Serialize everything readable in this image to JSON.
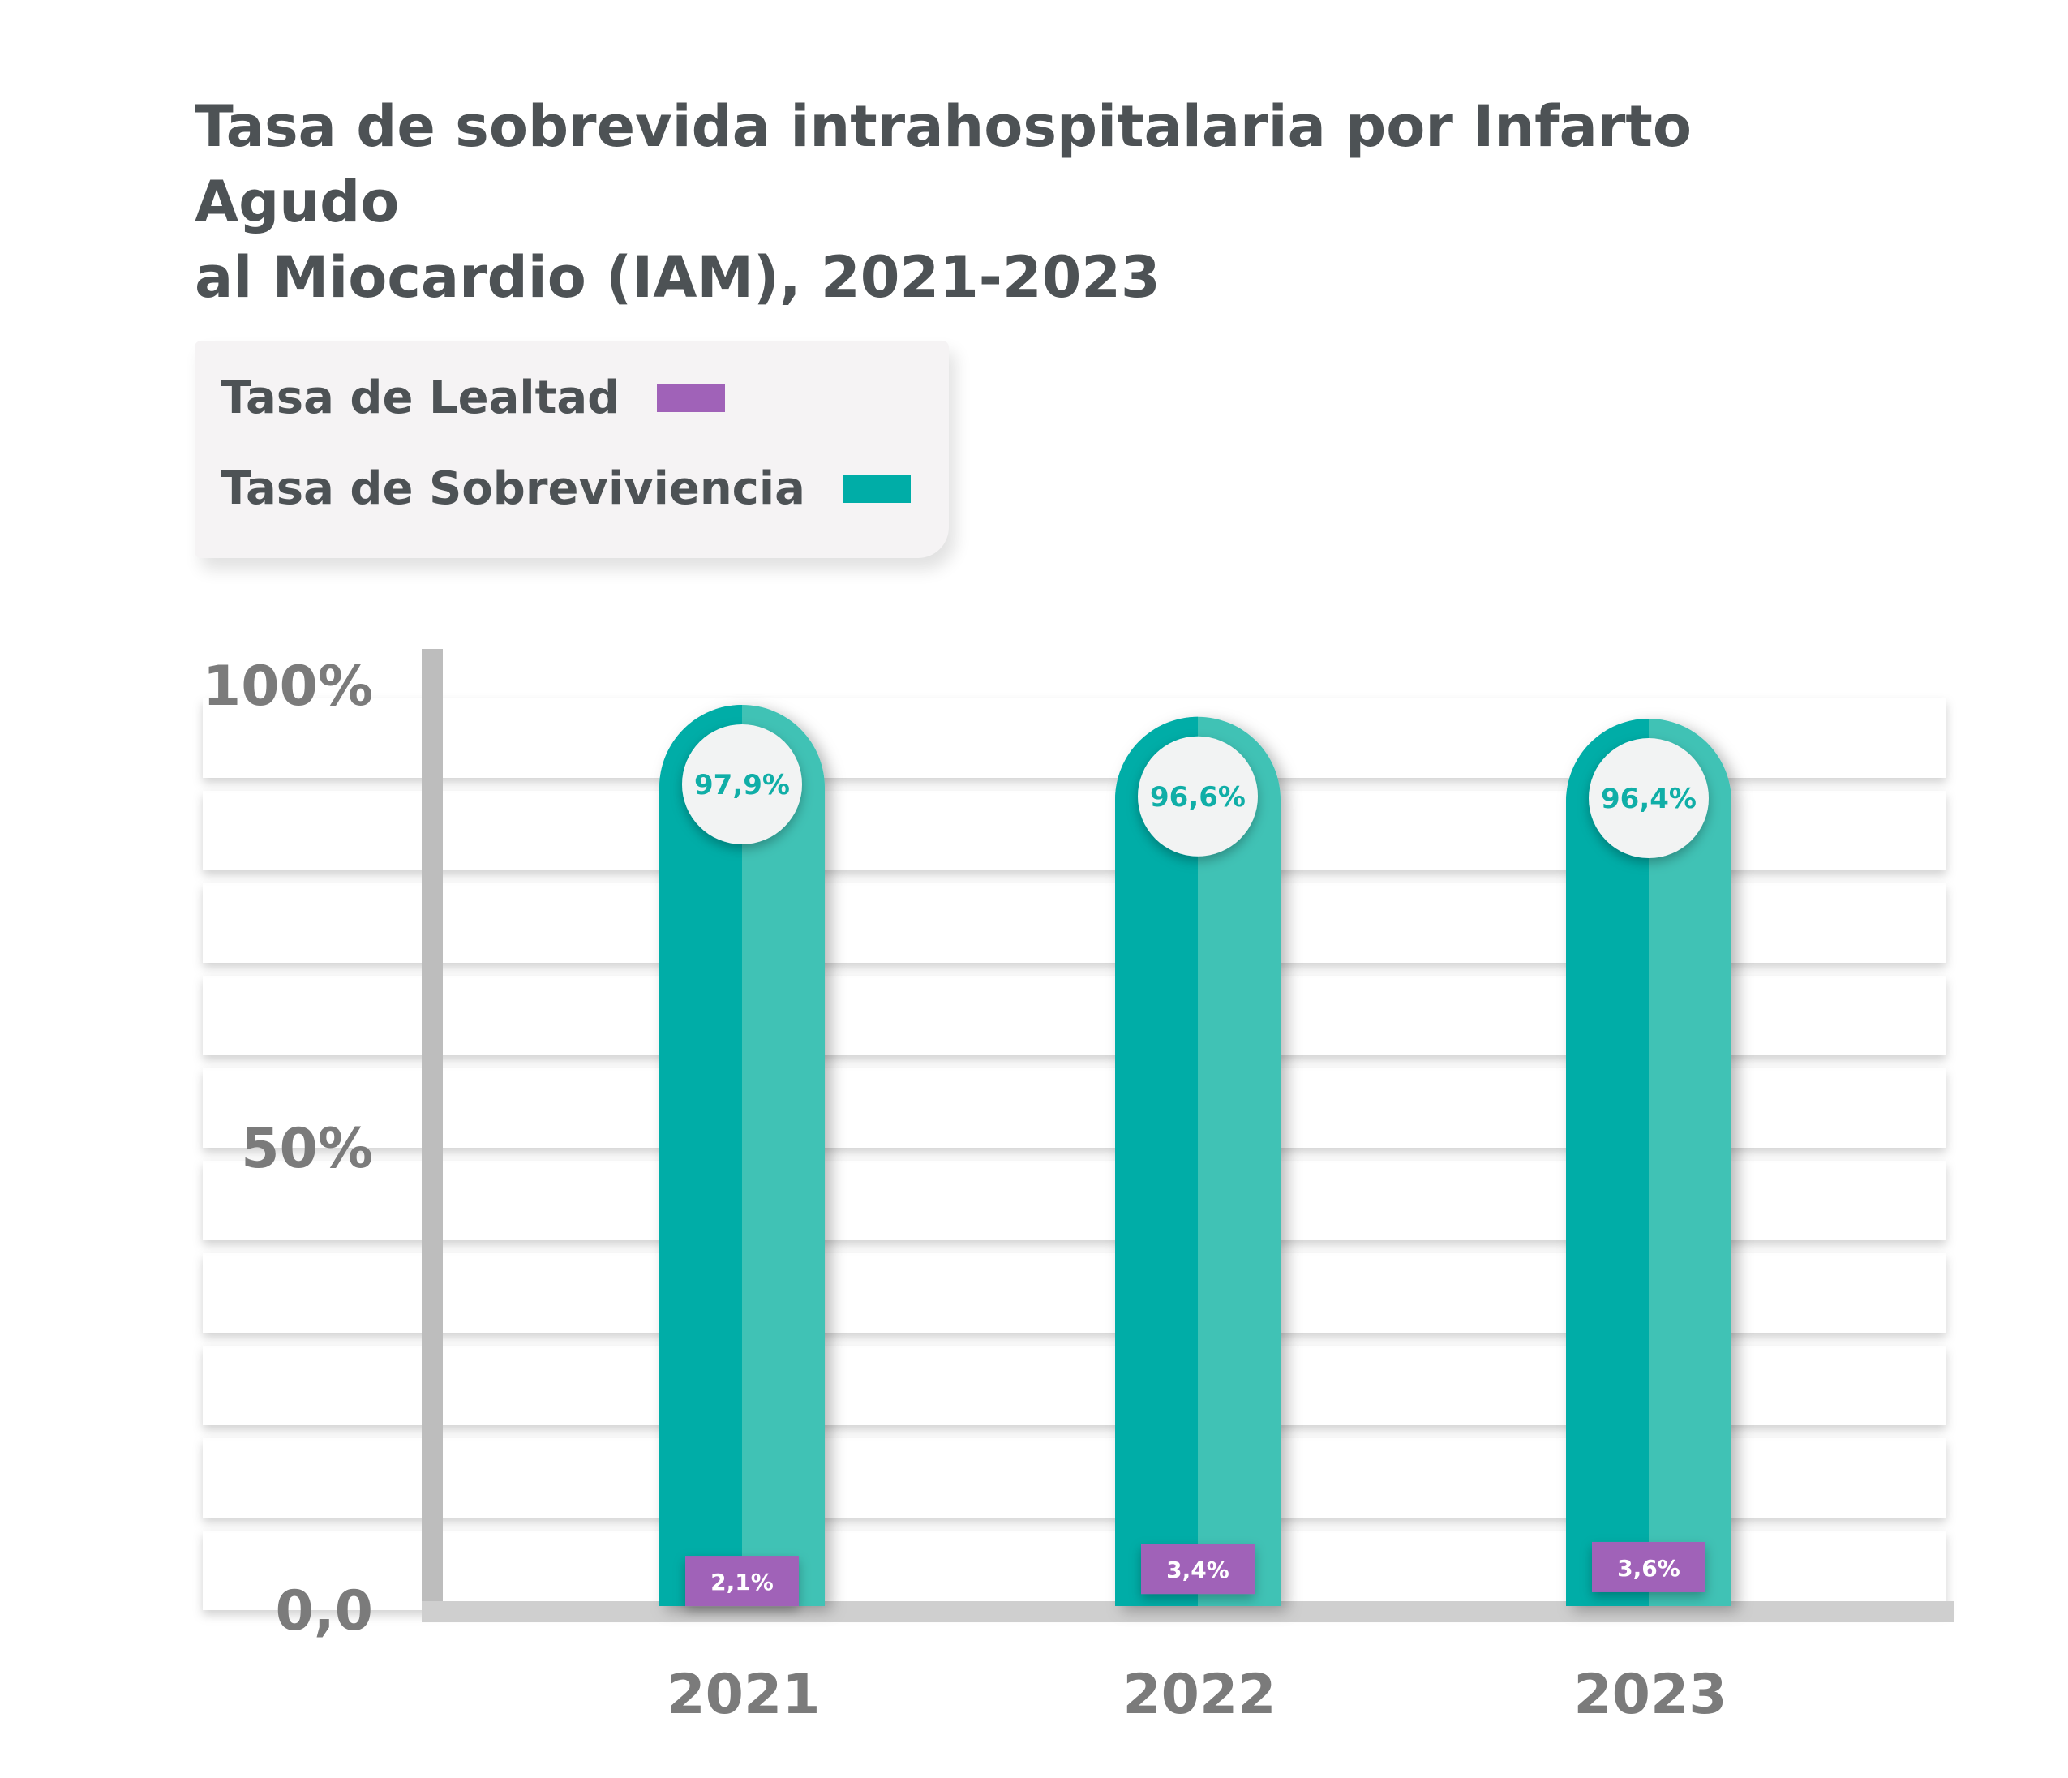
{
  "colors": {
    "lealtad": "#a062b8",
    "sobrevivencia_dark": "#00ada7",
    "sobrevivencia_light": "#3fc2b5",
    "title": "#4d5255",
    "axis_text": "#7b7b7b",
    "bubble_bg": "#f2f3f3"
  },
  "chart_data": {
    "type": "bar",
    "title": "Tasa de sobrevida intrahospitalaria por Infarto Agudo\nal Miocardio (IAM), 2021-2023",
    "categories": [
      "2021",
      "2022",
      "2023"
    ],
    "series": [
      {
        "name": "Tasa de Lealtad",
        "values": [
          2.1,
          3.4,
          3.6
        ],
        "labels": [
          "2,1%",
          "3,4%",
          "3,6%"
        ]
      },
      {
        "name": "Tasa de Sobreviviencia",
        "values": [
          97.9,
          96.6,
          96.4
        ],
        "labels": [
          "97,9%",
          "96,6%",
          "96,4%"
        ]
      }
    ],
    "yticks": [
      {
        "value": 0,
        "label": "0,0"
      },
      {
        "value": 50,
        "label": "50%"
      },
      {
        "value": 100,
        "label": "100%"
      }
    ],
    "ylim": [
      0,
      100
    ],
    "xlabel": "",
    "ylabel": "",
    "grid": true,
    "legend": "top-left"
  }
}
